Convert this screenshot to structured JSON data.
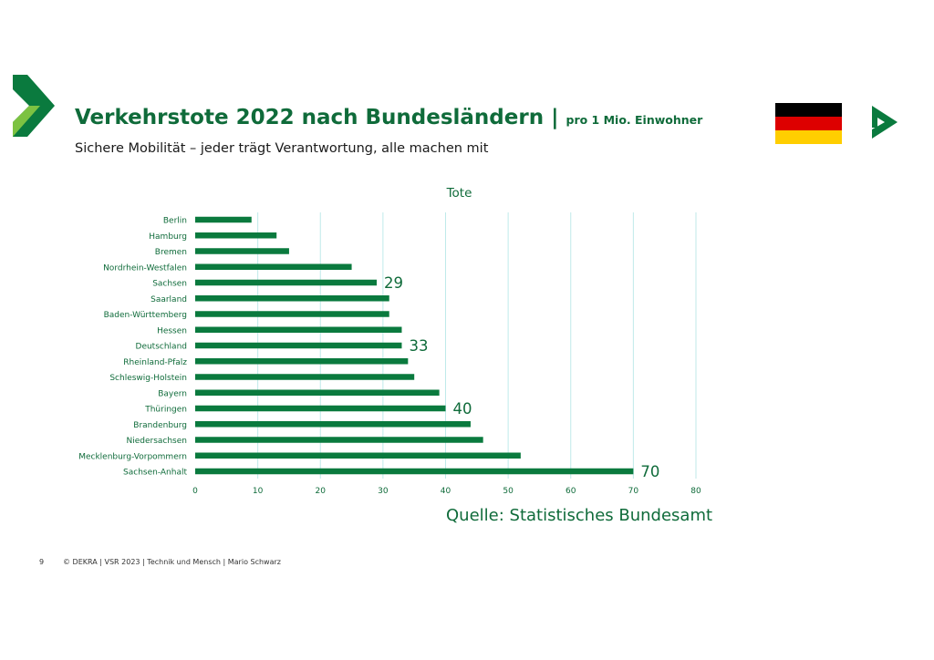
{
  "header": {
    "title": "Verkehrstote 2022 nach Bundesländern",
    "separator": "|",
    "unit": "pro 1 Mio. Einwohner",
    "subtitle": "Sichere Mobilität – jeder trägt Verantwortung, alle machen mit"
  },
  "colors": {
    "brand_green": "#0f6b3a",
    "bar_green": "#0a7a3e",
    "grid": "#bfeaea",
    "flag": [
      "#000000",
      "#dd0000",
      "#ffce00"
    ]
  },
  "icons": {
    "left_logo": "dekra-arrow-icon",
    "right_logo": "dekra-arrow-icon",
    "flag": "germany-flag-icon"
  },
  "chart_data": {
    "type": "bar",
    "orientation": "horizontal",
    "title": "Tote",
    "categories": [
      "Berlin",
      "Hamburg",
      "Bremen",
      "Nordrhein-Westfalen",
      "Sachsen",
      "Saarland",
      "Baden-Württemberg",
      "Hessen",
      "Deutschland",
      "Rheinland-Pfalz",
      "Schleswig-Holstein",
      "Bayern",
      "Thüringen",
      "Brandenburg",
      "Niedersachsen",
      "Mecklenburg-Vorpommern",
      "Sachsen-Anhalt"
    ],
    "values": [
      9,
      13,
      15,
      25,
      29,
      31,
      31,
      33,
      33,
      34,
      35,
      39,
      40,
      44,
      46,
      52,
      70
    ],
    "data_labels": [
      {
        "category": "Sachsen",
        "text": "29"
      },
      {
        "category": "Deutschland",
        "text": "33"
      },
      {
        "category": "Thüringen",
        "text": "40"
      },
      {
        "category": "Sachsen-Anhalt",
        "text": "70"
      }
    ],
    "xlim": [
      0,
      80
    ],
    "xticks": [
      0,
      10,
      20,
      30,
      40,
      50,
      60,
      70,
      80
    ],
    "grid": true
  },
  "source": "Quelle: Statistisches Bundesamt",
  "footer": {
    "page": "9",
    "text": "© DEKRA | VSR 2023 | Technik und Mensch | Mario Schwarz"
  }
}
